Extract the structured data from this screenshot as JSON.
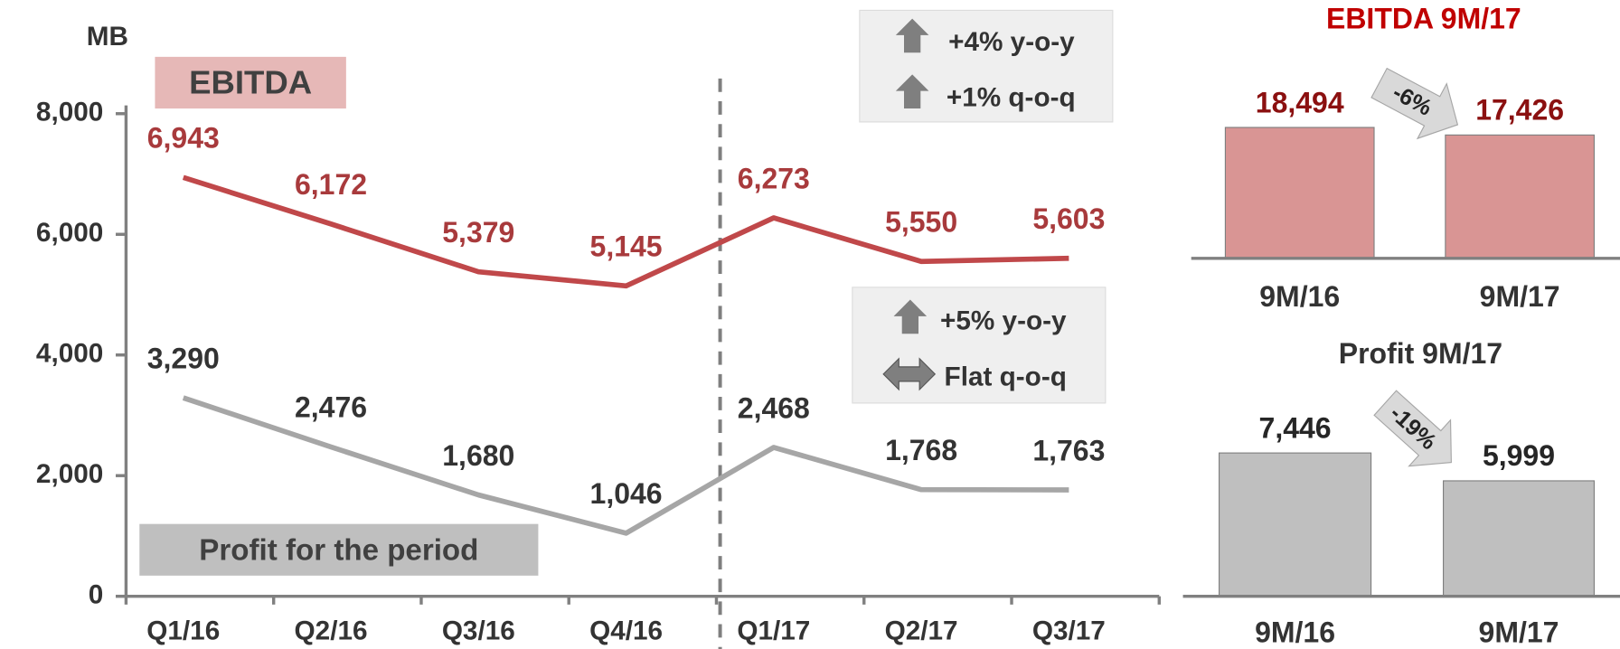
{
  "chart_data": [
    {
      "type": "line",
      "y_label": "MB",
      "categories": [
        "Q1/16",
        "Q2/16",
        "Q3/16",
        "Q4/16",
        "Q1/17",
        "Q2/17",
        "Q3/17"
      ],
      "series": [
        {
          "name": "EBITDA",
          "color": "#c0484a",
          "label_color": "#a83a3c",
          "legend_color": "#e6b8b7",
          "values": [
            6943,
            6172,
            5379,
            5145,
            6273,
            5550,
            5603
          ],
          "value_labels": [
            "6,943",
            "6,172",
            "5,379",
            "5,145",
            "6,273",
            "5,550",
            "5,603"
          ]
        },
        {
          "name": "Profit for the period",
          "color": "#a6a6a6",
          "label_color": "#333333",
          "legend_color": "#bfbfbf",
          "values": [
            3290,
            2476,
            1680,
            1046,
            2468,
            1768,
            1763
          ],
          "value_labels": [
            "3,290",
            "2,476",
            "1,680",
            "1,046",
            "2,468",
            "1,768",
            "1,763"
          ]
        }
      ],
      "ylim": [
        0,
        8000
      ],
      "yticks": [
        0,
        {
          "value": 2000,
          "label": "2,000"
        },
        {
          "value": 4000,
          "label": "4,000"
        },
        {
          "value": 6000,
          "label": "6,000"
        },
        {
          "value": 8000,
          "label": "8,000"
        }
      ],
      "annotations": [
        "+4% y-o-y",
        "+1% q-o-q",
        "+5% y-o-y",
        "Flat q-o-q"
      ]
    },
    {
      "type": "bar",
      "title": "EBITDA 9M/17",
      "title_color": "#c00000",
      "categories": [
        "9M/16",
        "9M/17"
      ],
      "values": [
        18494,
        17426
      ],
      "value_labels": [
        "18,494",
        "17,426"
      ],
      "color": "#d99594",
      "label_color": "#8b1010",
      "ylim": [
        0,
        20000
      ],
      "change": "-6%"
    },
    {
      "type": "bar",
      "title": "Profit 9M/17",
      "title_color": "#333333",
      "categories": [
        "9M/16",
        "9M/17"
      ],
      "values": [
        7446,
        5999
      ],
      "value_labels": [
        "7,446",
        "5,999"
      ],
      "color": "#bfbfbf",
      "label_color": "#262626",
      "ylim": [
        0,
        8000
      ],
      "change": "-19%"
    }
  ]
}
